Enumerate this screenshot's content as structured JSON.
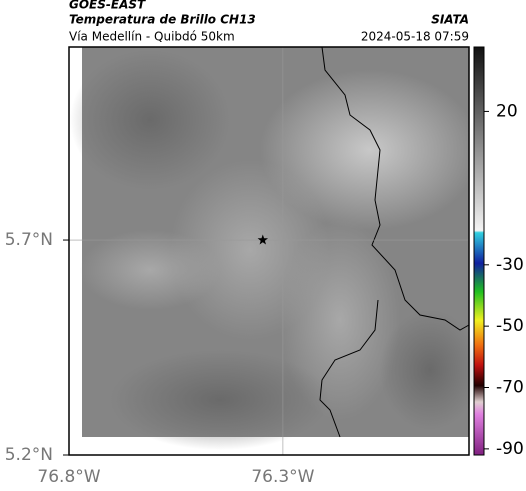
{
  "header": {
    "title": "GOES-EAST",
    "subtitle": "Temperatura de Brillo CH13",
    "source": "SIATA",
    "route": "Vía Medellín - Quibdó 50km",
    "timestamp": "2024-05-18 07:59"
  },
  "map": {
    "xlim": [
      -76.8,
      -75.865
    ],
    "ylim": [
      5.2,
      6.149
    ],
    "xticks": [
      {
        "value": -76.8,
        "label": "76.8°W"
      },
      {
        "value": -76.3,
        "label": "76.3°W"
      }
    ],
    "yticks": [
      {
        "value": 5.2,
        "label": "5.2°N"
      },
      {
        "value": 5.7,
        "label": "5.7°N"
      }
    ],
    "marker": {
      "lon": -76.347,
      "lat": 5.7
    }
  },
  "colorbar": {
    "lim": [
      -92,
      41
    ],
    "ticks": [
      20,
      -30,
      -50,
      -70,
      -90
    ]
  }
}
